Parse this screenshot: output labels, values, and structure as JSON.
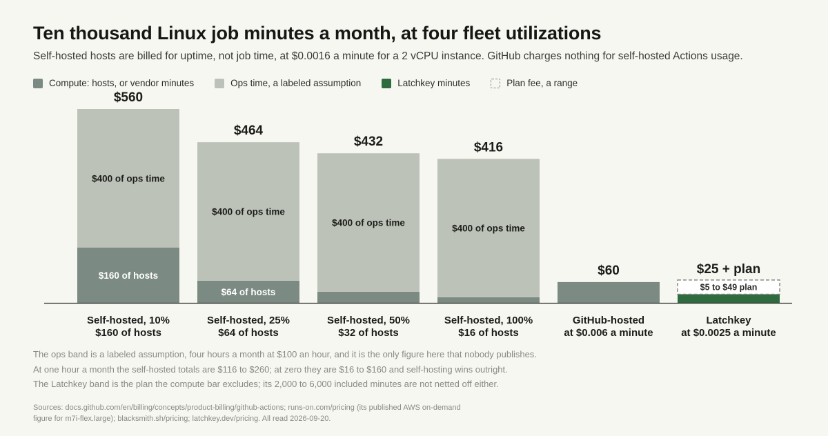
{
  "header": {
    "title": "Ten thousand Linux job minutes a month, at four fleet utilizations",
    "subtitle": "Self-hosted hosts are billed for uptime, not job time, at $0.0016 a minute for a 2 vCPU instance. GitHub charges nothing for self-hosted Actions usage."
  },
  "legend": [
    {
      "label": "Compute: hosts, or vendor minutes",
      "color": "#7b8a82",
      "style": "solid"
    },
    {
      "label": "Ops time, a labeled assumption",
      "color": "#bcc2b7",
      "style": "solid"
    },
    {
      "label": "Latchkey minutes",
      "color": "#2e6b3e",
      "style": "solid"
    },
    {
      "label": "Plan fee, a range",
      "color": "#888884",
      "style": "dashed"
    }
  ],
  "colors": {
    "compute": "#7b8a82",
    "ops": "#bcc2b7",
    "latchkey": "#2e6b3e",
    "plan_border": "#888884",
    "axis": "#2a2a28"
  },
  "chart_data": {
    "type": "bar",
    "stacked": true,
    "title": "Ten thousand Linux job minutes a month, at four fleet utilizations",
    "ylim": [
      0,
      560
    ],
    "grid": false,
    "legend_position": "top-left",
    "bars": [
      {
        "label_line1": "Self-hosted, 10%",
        "label_line2": "$160 of hosts",
        "total_label": "$560",
        "compute": 160,
        "compute_label": "$160 of hosts",
        "ops": 400,
        "ops_label": "$400 of ops time"
      },
      {
        "label_line1": "Self-hosted, 25%",
        "label_line2": "$64 of hosts",
        "total_label": "$464",
        "compute": 64,
        "compute_label": "$64 of hosts",
        "ops": 400,
        "ops_label": "$400 of ops time"
      },
      {
        "label_line1": "Self-hosted, 50%",
        "label_line2": "$32 of hosts",
        "total_label": "$432",
        "compute": 32,
        "compute_label": "",
        "ops": 400,
        "ops_label": "$400 of ops time"
      },
      {
        "label_line1": "Self-hosted, 100%",
        "label_line2": "$16 of hosts",
        "total_label": "$416",
        "compute": 16,
        "compute_label": "",
        "ops": 400,
        "ops_label": "$400 of ops time"
      },
      {
        "label_line1": "GitHub-hosted",
        "label_line2": "at $0.006 a minute",
        "total_label": "$60",
        "compute": 60,
        "compute_label": "",
        "ops": 0,
        "ops_label": ""
      },
      {
        "label_line1": "Latchkey",
        "label_line2": "at $0.0025 a minute",
        "total_label": "$25 + plan",
        "latchkey": 25,
        "plan_min": 5,
        "plan_max": 49,
        "plan_label": "$5 to $49 plan"
      }
    ]
  },
  "notes": [
    "The ops band is a labeled assumption, four hours a month at $100 an hour, and it is the only figure here that nobody publishes.",
    "At one hour a month the self-hosted totals are $116 to $260; at zero they are $16 to $160 and self-hosting wins outright.",
    "The Latchkey band is the plan the compute bar excludes; its 2,000 to 6,000 included minutes are not netted off either."
  ],
  "sources": "Sources: docs.github.com/en/billing/concepts/product-billing/github-actions; runs-on.com/pricing (its published AWS on-demand figure for m7i-flex.large); blacksmith.sh/pricing; latchkey.dev/pricing. All read 2026-09-20."
}
